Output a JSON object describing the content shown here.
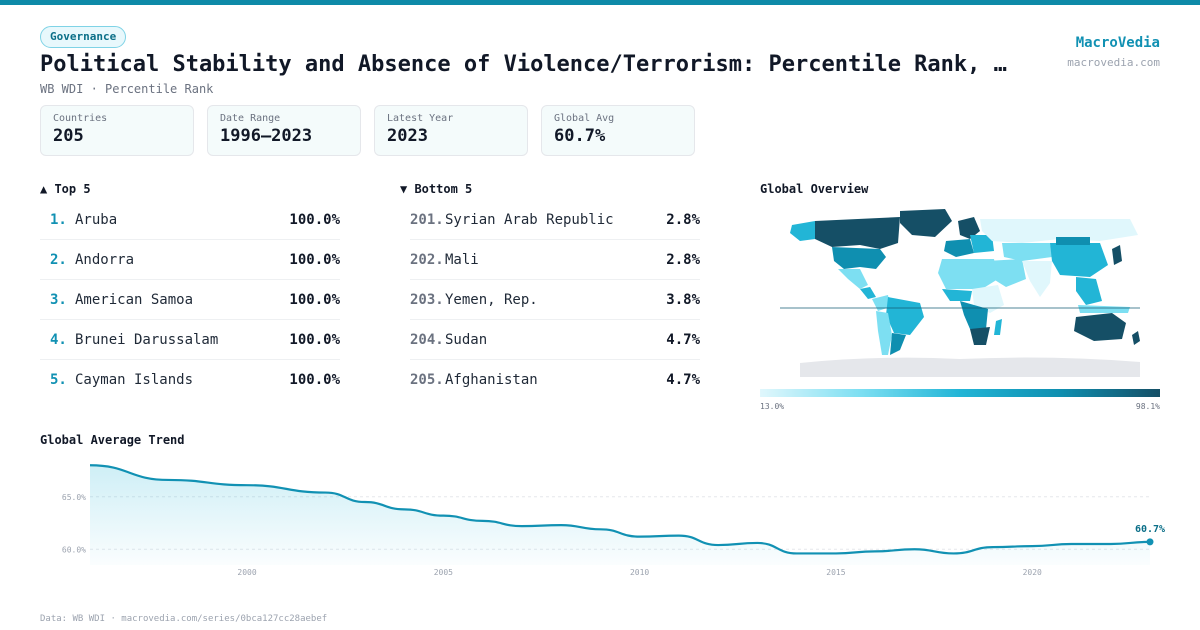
{
  "header": {
    "badge": "Governance",
    "title": "Political Stability and Absence of Violence/Terrorism: Percentile Rank, …",
    "subtitle": "WB WDI · Percentile Rank",
    "brand": "MacroVedia",
    "brand_url": "macrovedia.com"
  },
  "stats": [
    {
      "label": "Countries",
      "value": "205"
    },
    {
      "label": "Date Range",
      "value": "1996–2023"
    },
    {
      "label": "Latest Year",
      "value": "2023"
    },
    {
      "label": "Global Avg",
      "value": "60.7%"
    }
  ],
  "top5": {
    "heading": "▲ Top 5",
    "items": [
      {
        "rank": "1.",
        "name": "Aruba",
        "value": "100.0%"
      },
      {
        "rank": "2.",
        "name": "Andorra",
        "value": "100.0%"
      },
      {
        "rank": "3.",
        "name": "American Samoa",
        "value": "100.0%"
      },
      {
        "rank": "4.",
        "name": "Brunei Darussalam",
        "value": "100.0%"
      },
      {
        "rank": "5.",
        "name": "Cayman Islands",
        "value": "100.0%"
      }
    ]
  },
  "bottom5": {
    "heading": "▼ Bottom 5",
    "items": [
      {
        "rank": "201.",
        "name": "Syrian Arab Republic",
        "value": "2.8%"
      },
      {
        "rank": "202.",
        "name": "Mali",
        "value": "2.8%"
      },
      {
        "rank": "203.",
        "name": "Yemen, Rep.",
        "value": "3.8%"
      },
      {
        "rank": "204.",
        "name": "Sudan",
        "value": "4.7%"
      },
      {
        "rank": "205.",
        "name": "Afghanistan",
        "value": "4.7%"
      }
    ]
  },
  "map": {
    "heading": "Global Overview",
    "legend_min": "13.0%",
    "legend_max": "98.1%",
    "colors": [
      "#e0f7fc",
      "#7ddff2",
      "#22b5d6",
      "#0f8fb0",
      "#154f66"
    ]
  },
  "trend": {
    "heading": "Global Average Trend"
  },
  "chart_data": {
    "type": "area",
    "x": [
      1996,
      1998,
      2000,
      2002,
      2003,
      2004,
      2005,
      2006,
      2007,
      2008,
      2009,
      2010,
      2011,
      2012,
      2013,
      2014,
      2015,
      2016,
      2017,
      2018,
      2019,
      2020,
      2021,
      2022,
      2023
    ],
    "series": [
      {
        "values": [
          68.0,
          66.6,
          66.1,
          65.4,
          64.5,
          63.8,
          63.2,
          62.7,
          62.2,
          62.3,
          61.9,
          61.2,
          61.3,
          60.4,
          60.6,
          59.6,
          59.6,
          59.8,
          60.0,
          59.6,
          60.2,
          60.3,
          60.5,
          60.5,
          60.7
        ]
      }
    ],
    "xticks": [
      2000,
      2005,
      2010,
      2015,
      2020
    ],
    "yticks": [
      {
        "value": 65,
        "label": "65.0%"
      },
      {
        "value": 60,
        "label": "60.0%"
      }
    ],
    "ylim": [
      58.5,
      68.5
    ],
    "xlim": [
      1996,
      2023
    ],
    "last_label": "60.7%",
    "color": "#1191b3"
  },
  "footer": "Data: WB WDI · macrovedia.com/series/0bca127cc28aebef"
}
